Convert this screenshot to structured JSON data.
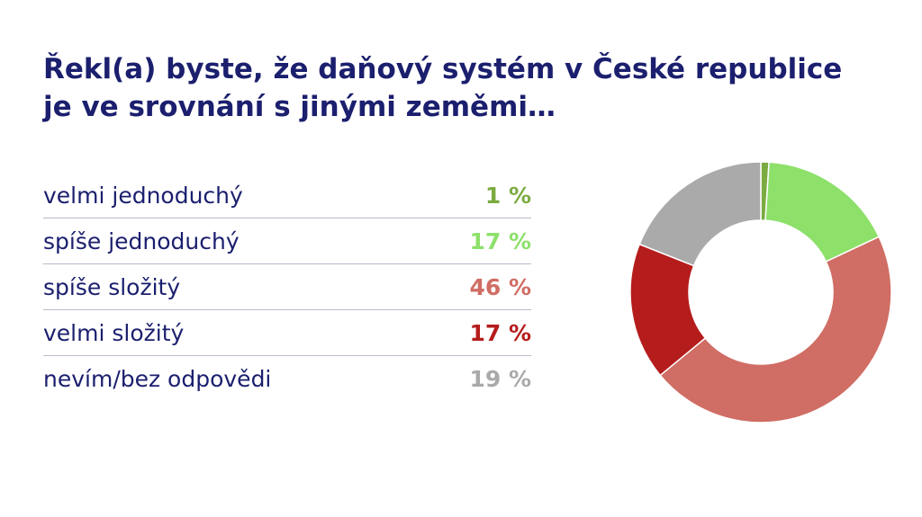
{
  "title": {
    "line1": "Řekl(a) byste, že daňový systém v České republice",
    "line2": "je ve srovnání s jinými zeměmi…"
  },
  "chart_data": {
    "type": "pie",
    "variant": "donut",
    "categories": [
      "velmi jednoduchý",
      "spíše jednoduchý",
      "spíše složitý",
      "velmi složitý",
      "nevím/bez odpovědi"
    ],
    "values": [
      1,
      17,
      46,
      17,
      19
    ],
    "value_labels": [
      "1 %",
      "17 %",
      "46 %",
      "17 %",
      "19 %"
    ],
    "colors": [
      "#7bab40",
      "#8de06a",
      "#d06d64",
      "#b51c1c",
      "#aaaaaa"
    ],
    "unit": "%"
  }
}
